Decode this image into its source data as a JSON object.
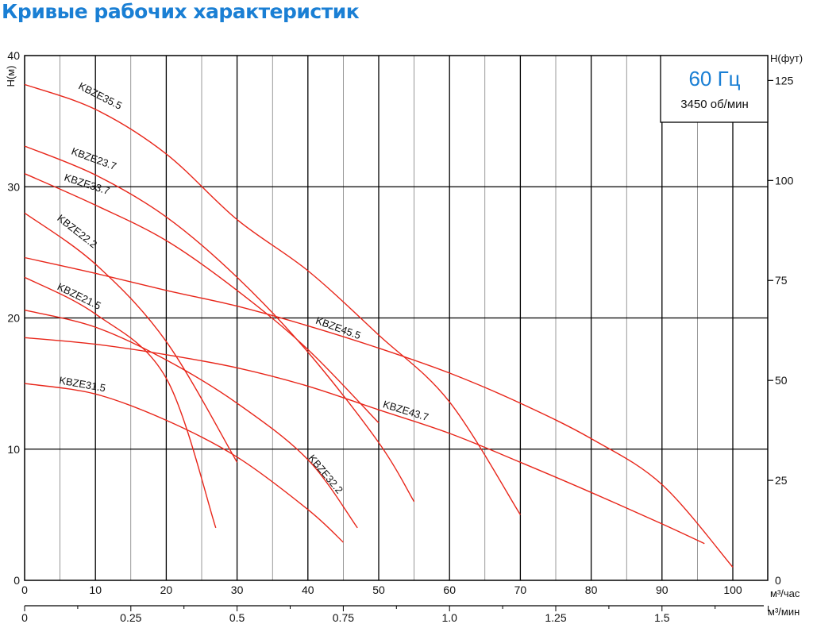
{
  "colors": {
    "title": "#1a7fd4",
    "curve": "#e8261a",
    "grid": "#000000",
    "minor_grid": "#555555",
    "legend_freq": "#1a7fd4"
  },
  "chart_data": {
    "type": "line",
    "title": "Кривые рабочих характеристик",
    "xlabel": "м³/час",
    "x2label": "м³/мин",
    "ylabel": "H(м)",
    "y2label": "H(фут)",
    "xlim": [
      0,
      105
    ],
    "ylim": [
      0,
      40
    ],
    "grid": true,
    "x_ticks": [
      "0",
      "10",
      "20",
      "30",
      "40",
      "50",
      "60",
      "70",
      "80",
      "90",
      "100"
    ],
    "x2_ticks": [
      {
        "value": 0,
        "label": "0"
      },
      {
        "value": 0.25,
        "label": "0.25"
      },
      {
        "value": 0.5,
        "label": "0.5"
      },
      {
        "value": 0.75,
        "label": "0.75"
      },
      {
        "value": 1.0,
        "label": "1.0"
      },
      {
        "value": 1.25,
        "label": "1.25"
      },
      {
        "value": 1.5,
        "label": "1.5"
      }
    ],
    "y_ticks": [
      "0",
      "10",
      "20",
      "30",
      "40"
    ],
    "y2_ticks": [
      {
        "value": 0,
        "label": "0"
      },
      {
        "value": 25,
        "label": "25"
      },
      {
        "value": 50,
        "label": "50"
      },
      {
        "value": 75,
        "label": "75"
      },
      {
        "value": 100,
        "label": "100"
      },
      {
        "value": 125,
        "label": "125"
      }
    ],
    "legend": {
      "frequency": "60 Гц",
      "speed": "3450 об/мин",
      "placement": "top-right"
    },
    "series": [
      {
        "name": "KBZE35.5",
        "label_at": [
          7.5,
          37.5,
          27
        ],
        "points": [
          [
            0,
            37.8
          ],
          [
            10,
            35.9
          ],
          [
            20,
            32.5
          ],
          [
            30,
            27.5
          ],
          [
            40,
            23.6
          ],
          [
            50,
            18.7
          ],
          [
            60,
            13.6
          ],
          [
            70,
            5.0
          ]
        ]
      },
      {
        "name": "KBZE23.7",
        "label_at": [
          6.5,
          32.5,
          20
        ],
        "points": [
          [
            0,
            33.1
          ],
          [
            10,
            30.9
          ],
          [
            20,
            27.7
          ],
          [
            30,
            23.1
          ],
          [
            40,
            17.4
          ],
          [
            50,
            10.5
          ],
          [
            55,
            6.0
          ]
        ]
      },
      {
        "name": "KBZE33.7",
        "label_at": [
          5.5,
          30.5,
          18
        ],
        "points": [
          [
            0,
            31.0
          ],
          [
            10,
            28.6
          ],
          [
            20,
            25.9
          ],
          [
            30,
            22.1
          ],
          [
            40,
            17.6
          ],
          [
            50,
            12.0
          ]
        ]
      },
      {
        "name": "KBZE22.2",
        "label_at": [
          4.5,
          27.5,
          38
        ],
        "points": [
          [
            0,
            28.0
          ],
          [
            10,
            24.1
          ],
          [
            20,
            18.2
          ],
          [
            30,
            9.0
          ]
        ]
      },
      {
        "name": "KBZE21.5",
        "label_at": [
          4.5,
          22.2,
          26
        ],
        "points": [
          [
            0,
            23.1
          ],
          [
            10,
            20.3
          ],
          [
            20,
            15.4
          ],
          [
            27,
            4.0
          ]
        ]
      },
      {
        "name": "KBZE45.5",
        "label_at": [
          41,
          19.6,
          20
        ],
        "points": [
          [
            0,
            24.6
          ],
          [
            10,
            23.4
          ],
          [
            20,
            22.1
          ],
          [
            30,
            20.9
          ],
          [
            40,
            19.4
          ],
          [
            50,
            17.7
          ],
          [
            60,
            15.8
          ],
          [
            70,
            13.5
          ],
          [
            80,
            10.8
          ],
          [
            90,
            7.3
          ],
          [
            100,
            1.0
          ]
        ]
      },
      {
        "name": "KBZE43.7",
        "label_at": [
          50.5,
          13.2,
          17
        ],
        "points": [
          [
            0,
            18.5
          ],
          [
            10,
            18.0
          ],
          [
            20,
            17.2
          ],
          [
            30,
            16.2
          ],
          [
            40,
            14.8
          ],
          [
            50,
            13.0
          ],
          [
            60,
            11.2
          ],
          [
            70,
            9.0
          ],
          [
            80,
            6.7
          ],
          [
            90,
            4.3
          ],
          [
            96,
            2.8
          ]
        ]
      },
      {
        "name": "KBZE32.2",
        "label_at": [
          40,
          9.3,
          50
        ],
        "points": [
          [
            0,
            20.6
          ],
          [
            10,
            19.3
          ],
          [
            20,
            16.8
          ],
          [
            30,
            13.5
          ],
          [
            40,
            9.2
          ],
          [
            47,
            4.0
          ]
        ]
      },
      {
        "name": "KBZE31.5",
        "label_at": [
          4.8,
          15.0,
          10
        ],
        "points": [
          [
            0,
            15.0
          ],
          [
            10,
            14.2
          ],
          [
            20,
            12.2
          ],
          [
            30,
            9.4
          ],
          [
            40,
            5.4
          ],
          [
            45,
            2.9
          ]
        ]
      }
    ]
  }
}
